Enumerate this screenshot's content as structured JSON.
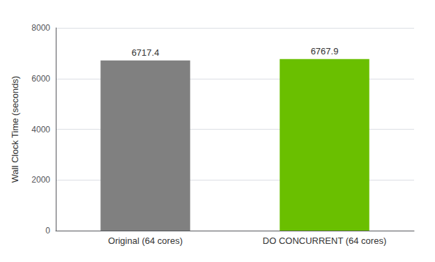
{
  "chart_data": {
    "type": "bar",
    "categories": [
      "Original (64 cores)",
      "DO CONCURRENT (64 cores)"
    ],
    "values": [
      6717.4,
      6767.9
    ],
    "colors": [
      "#808080",
      "#6abf00"
    ],
    "ylabel": "Wall Clock Time (seconds)",
    "ylim": [
      0,
      8000
    ],
    "yticks": [
      0,
      2000,
      4000,
      6000,
      8000
    ],
    "grid": true,
    "data_labels": true
  }
}
